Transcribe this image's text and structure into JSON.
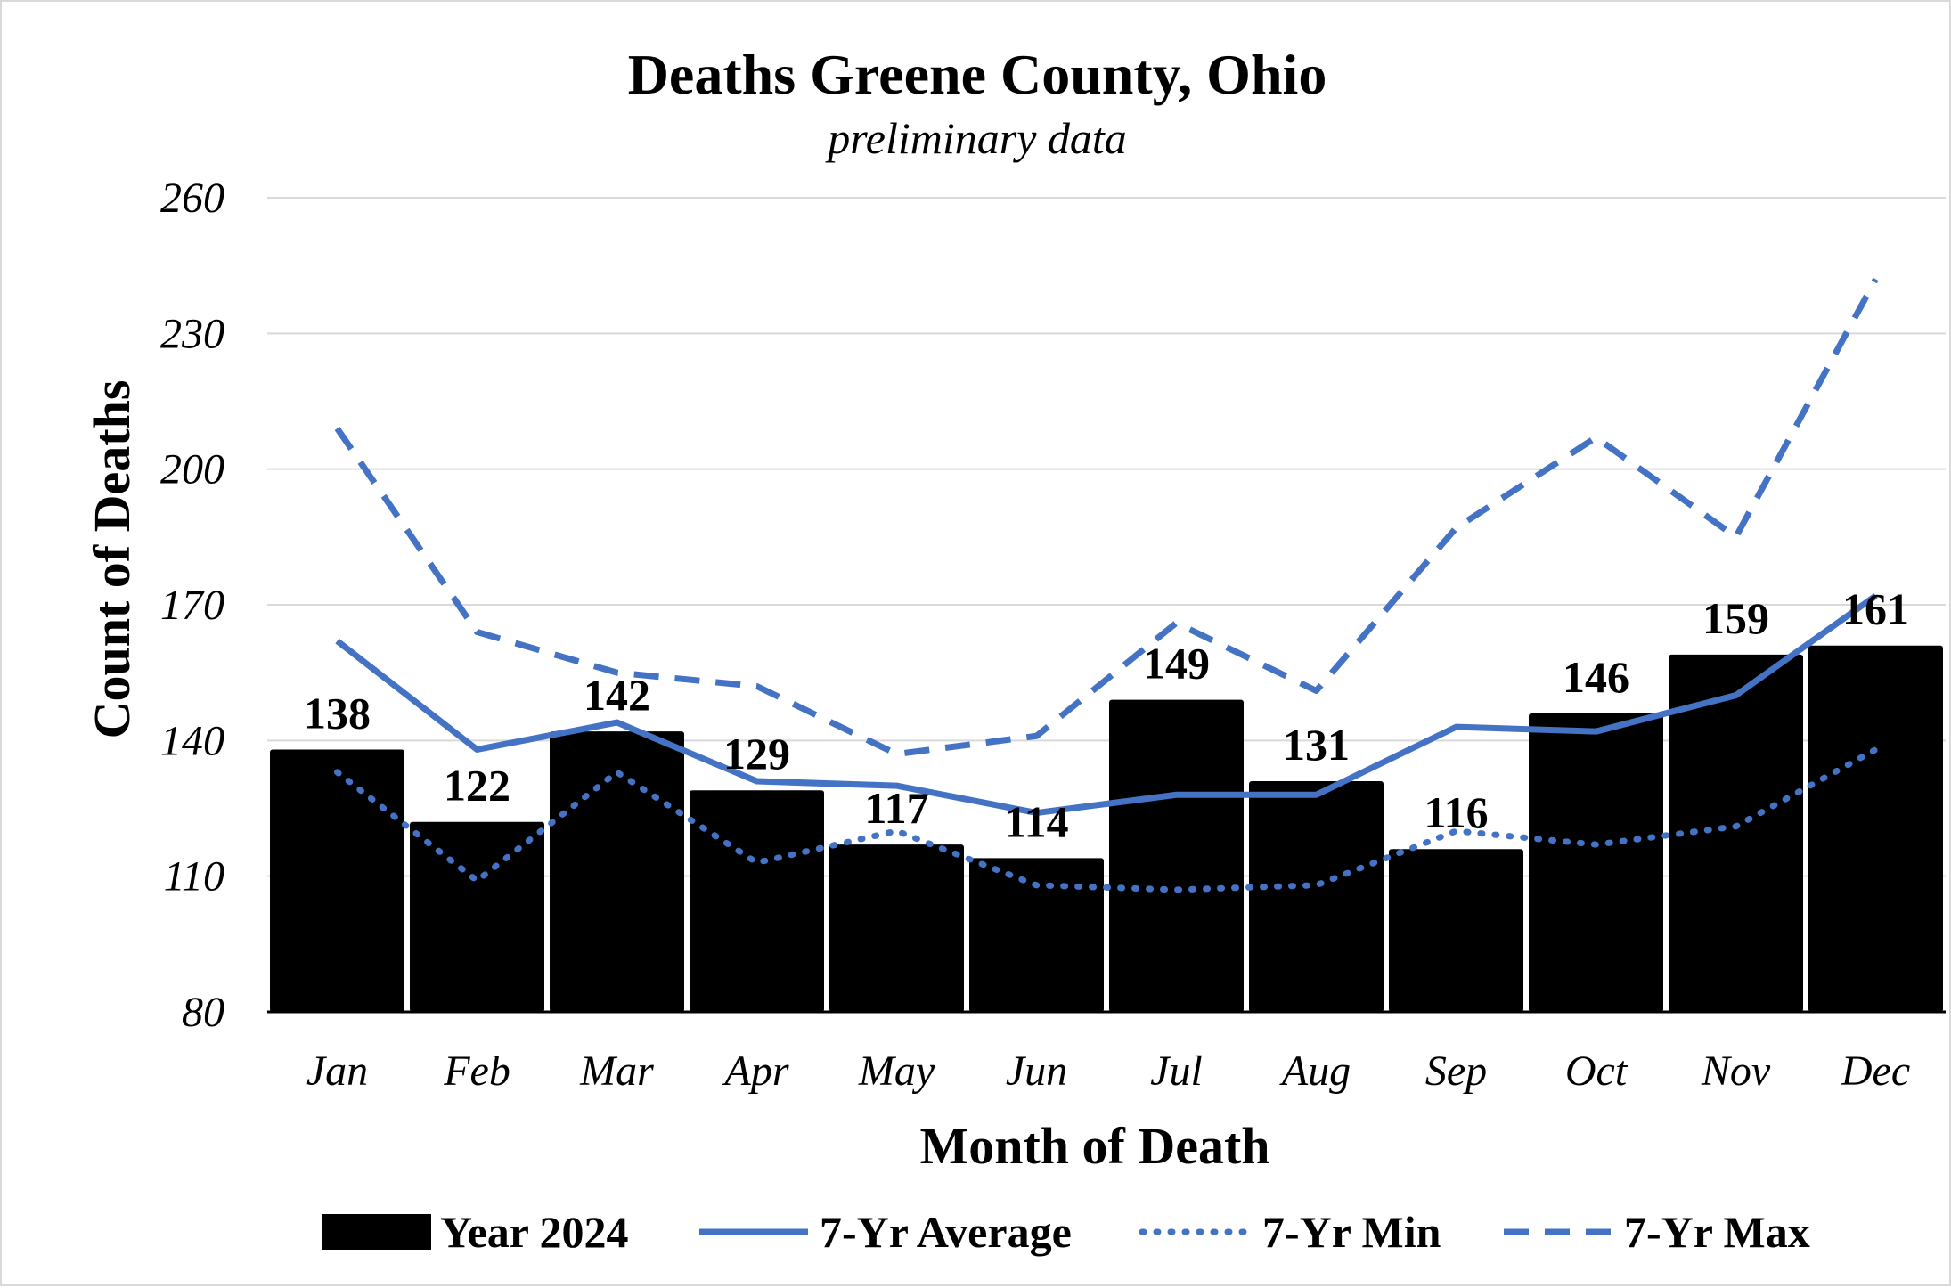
{
  "chart_data": {
    "type": "bar",
    "title": "Deaths Greene County, Ohio",
    "subtitle": "preliminary data",
    "xlabel": "Month of Death",
    "ylabel": "Count of Deaths",
    "ylim": [
      80,
      260
    ],
    "yticks": [
      80,
      110,
      140,
      170,
      200,
      230,
      260
    ],
    "ytick_labels": [
      "80",
      "110",
      "140",
      "170",
      "200",
      "230",
      "260"
    ],
    "grid": true,
    "legend_position": "bottom",
    "categories": [
      "Jan",
      "Feb",
      "Mar",
      "Apr",
      "May",
      "Jun",
      "Jul",
      "Aug",
      "Sep",
      "Oct",
      "Nov",
      "Dec"
    ],
    "bars": {
      "name": "Year 2024",
      "color": "#000000",
      "values": [
        138,
        122,
        142,
        129,
        117,
        114,
        149,
        131,
        116,
        146,
        159,
        161
      ],
      "labels": [
        "138",
        "122",
        "142",
        "129",
        "117",
        "114",
        "149",
        "131",
        "116",
        "146",
        "159",
        "161"
      ]
    },
    "lines": [
      {
        "name": "7-Yr Average",
        "color": "#4472C4",
        "style": "solid",
        "values": [
          162,
          138,
          144,
          131,
          130,
          124,
          128,
          128,
          143,
          142,
          150,
          172
        ]
      },
      {
        "name": "7-Yr Min",
        "color": "#4472C4",
        "style": "dotted",
        "values": [
          133,
          109,
          133,
          113,
          120,
          108,
          107,
          108,
          120,
          117,
          121,
          138
        ]
      },
      {
        "name": "7-Yr Max",
        "color": "#4472C4",
        "style": "dashed",
        "values": [
          209,
          164,
          155,
          152,
          137,
          141,
          166,
          151,
          187,
          207,
          185,
          242
        ]
      }
    ]
  }
}
